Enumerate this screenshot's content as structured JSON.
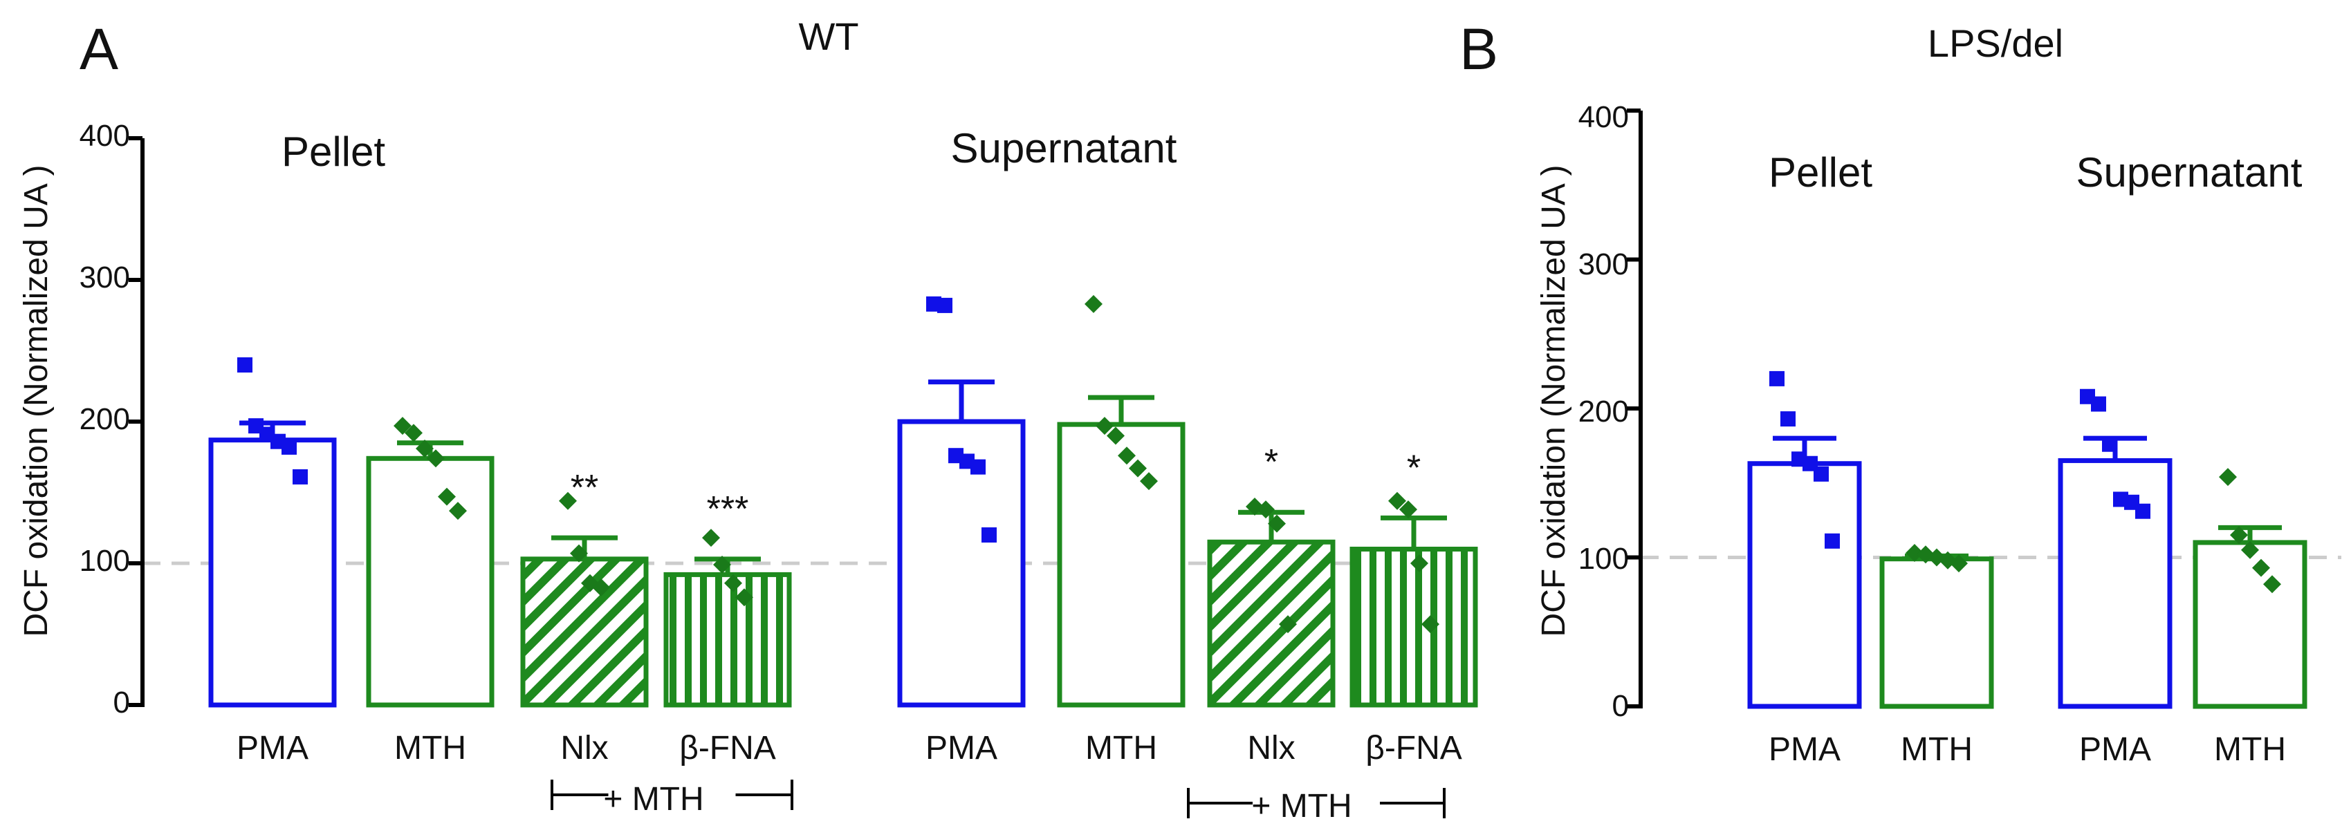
{
  "chart_data": [
    {
      "panel": "A",
      "type": "bar",
      "title": "WT",
      "ylabel": "DCF oxidation (Normalized UA )",
      "xlabel": "",
      "ylim": [
        0,
        400
      ],
      "yticks": [
        "0",
        "100",
        "200",
        "300",
        "400"
      ],
      "reference_line": 100,
      "groups": [
        {
          "name": "Pellet",
          "bracket_label": "+ MTH",
          "bars": [
            {
              "label": "PMA",
              "mean": 187,
              "sem": 12,
              "color": "#1010e8",
              "fill": "open",
              "marker": "square",
              "points": [
                240,
                197,
                191,
                186,
                182,
                161
              ],
              "sig": ""
            },
            {
              "label": "MTH",
              "mean": 174,
              "sem": 11,
              "color": "#1e8a1e",
              "fill": "open",
              "marker": "diamond",
              "points": [
                197,
                192,
                181,
                174,
                147,
                137
              ],
              "sig": ""
            },
            {
              "label": "Nlx",
              "mean": 103,
              "sem": 15,
              "color": "#1e8a1e",
              "fill": "diagonal",
              "marker": "diamond",
              "points": [
                144,
                107,
                86,
                83
              ],
              "sig": "**"
            },
            {
              "label": "β-FNA",
              "mean": 92,
              "sem": 11,
              "color": "#1e8a1e",
              "fill": "vertical",
              "marker": "diamond",
              "points": [
                118,
                99,
                86,
                76
              ],
              "sig": "***"
            }
          ]
        },
        {
          "name": "Supernatant",
          "bracket_label": "+ MTH",
          "bars": [
            {
              "label": "PMA",
              "mean": 200,
              "sem": 28,
              "color": "#1010e8",
              "fill": "open",
              "marker": "square",
              "points": [
                283,
                282,
                176,
                172,
                168,
                120
              ],
              "sig": ""
            },
            {
              "label": "MTH",
              "mean": 198,
              "sem": 19,
              "color": "#1e8a1e",
              "fill": "open",
              "marker": "diamond",
              "points": [
                283,
                197,
                190,
                176,
                167,
                158
              ],
              "sig": ""
            },
            {
              "label": "Nlx",
              "mean": 115,
              "sem": 21,
              "color": "#1e8a1e",
              "fill": "diagonal",
              "marker": "diamond",
              "points": [
                140,
                138,
                128,
                57
              ],
              "sig": "*"
            },
            {
              "label": "β-FNA",
              "mean": 110,
              "sem": 22,
              "color": "#1e8a1e",
              "fill": "vertical",
              "marker": "diamond",
              "points": [
                144,
                138,
                100,
                57
              ],
              "sig": "*"
            }
          ]
        }
      ]
    },
    {
      "panel": "B",
      "type": "bar",
      "title": "LPS/del",
      "ylabel": "DCF oxidation (Normalized UA )",
      "xlabel": "",
      "ylim": [
        0,
        400
      ],
      "yticks": [
        "0",
        "100",
        "200",
        "300",
        "400"
      ],
      "reference_line": 100,
      "groups": [
        {
          "name": "Pellet",
          "bars": [
            {
              "label": "PMA",
              "mean": 163,
              "sem": 17,
              "color": "#1010e8",
              "fill": "open",
              "marker": "square",
              "points": [
                220,
                193,
                166,
                163,
                156,
                111
              ],
              "sig": ""
            },
            {
              "label": "MTH",
              "mean": 99,
              "sem": 2,
              "color": "#1e8a1e",
              "fill": "open",
              "marker": "diamond",
              "points": [
                103,
                102,
                100,
                98,
                96
              ],
              "sig": ""
            }
          ]
        },
        {
          "name": "Supernatant",
          "bars": [
            {
              "label": "PMA",
              "mean": 165,
              "sem": 15,
              "color": "#1010e8",
              "fill": "open",
              "marker": "square",
              "points": [
                208,
                203,
                176,
                139,
                137,
                131
              ],
              "sig": ""
            },
            {
              "label": "MTH",
              "mean": 110,
              "sem": 10,
              "color": "#1e8a1e",
              "fill": "open",
              "marker": "diamond",
              "points": [
                154,
                115,
                105,
                93,
                82
              ],
              "sig": ""
            }
          ]
        }
      ]
    }
  ]
}
